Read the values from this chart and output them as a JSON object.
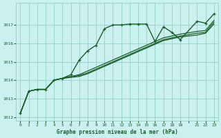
{
  "title": "Graphe pression niveau de la mer (hPa)",
  "bg_color": "#caf0f0",
  "grid_color": "#88ccbb",
  "line_color": "#1a5c2a",
  "xlim": [
    -0.5,
    23.5
  ],
  "ylim": [
    1011.8,
    1018.2
  ],
  "yticks": [
    1012,
    1013,
    1014,
    1015,
    1016,
    1017
  ],
  "xtick_labels": [
    "0",
    "1",
    "2",
    "3",
    "4",
    "5",
    "6",
    "7",
    "8",
    "9",
    "10",
    "11",
    "12",
    "13",
    "14",
    "15",
    "16",
    "17",
    "18",
    "19",
    "",
    "21",
    "22",
    "23"
  ],
  "series": [
    {
      "x": [
        0,
        1,
        2,
        3,
        4,
        5,
        6,
        7,
        8,
        9,
        10,
        11,
        12,
        13,
        14,
        15,
        16,
        17,
        18,
        19,
        21,
        22,
        23
      ],
      "y": [
        1012.2,
        1013.4,
        1013.5,
        1013.5,
        1014.0,
        1014.1,
        1014.3,
        1015.1,
        1015.6,
        1015.9,
        1016.8,
        1017.0,
        1017.0,
        1017.05,
        1017.05,
        1017.05,
        1016.1,
        1016.9,
        1016.6,
        1016.2,
        1017.2,
        1017.1,
        1017.6
      ],
      "markers": true,
      "lw": 1.0
    },
    {
      "x": [
        0,
        1,
        2,
        3,
        4,
        5,
        6,
        7,
        8,
        9,
        10,
        11,
        12,
        13,
        14,
        15,
        16,
        17,
        18,
        19,
        21,
        22,
        23
      ],
      "y": [
        1012.2,
        1013.4,
        1013.5,
        1013.5,
        1014.0,
        1014.1,
        1014.2,
        1014.3,
        1014.5,
        1014.7,
        1014.9,
        1015.1,
        1015.3,
        1015.5,
        1015.7,
        1015.9,
        1016.1,
        1016.3,
        1016.4,
        1016.5,
        1016.65,
        1016.7,
        1017.25
      ],
      "markers": false,
      "lw": 0.9
    },
    {
      "x": [
        0,
        1,
        2,
        3,
        4,
        5,
        6,
        7,
        8,
        9,
        10,
        11,
        12,
        13,
        14,
        15,
        16,
        17,
        18,
        19,
        21,
        22,
        23
      ],
      "y": [
        1012.2,
        1013.4,
        1013.5,
        1013.5,
        1014.0,
        1014.1,
        1014.2,
        1014.25,
        1014.4,
        1014.6,
        1014.8,
        1015.0,
        1015.2,
        1015.4,
        1015.6,
        1015.8,
        1016.0,
        1016.2,
        1016.3,
        1016.4,
        1016.55,
        1016.6,
        1017.15
      ],
      "markers": false,
      "lw": 0.9
    },
    {
      "x": [
        0,
        1,
        2,
        3,
        4,
        5,
        6,
        7,
        8,
        9,
        10,
        11,
        12,
        13,
        14,
        15,
        16,
        17,
        18,
        19,
        21,
        22,
        23
      ],
      "y": [
        1012.2,
        1013.4,
        1013.5,
        1013.5,
        1014.0,
        1014.1,
        1014.15,
        1014.2,
        1014.35,
        1014.55,
        1014.75,
        1014.95,
        1015.15,
        1015.35,
        1015.55,
        1015.75,
        1015.95,
        1016.15,
        1016.25,
        1016.35,
        1016.45,
        1016.55,
        1017.05
      ],
      "markers": false,
      "lw": 0.9
    }
  ]
}
